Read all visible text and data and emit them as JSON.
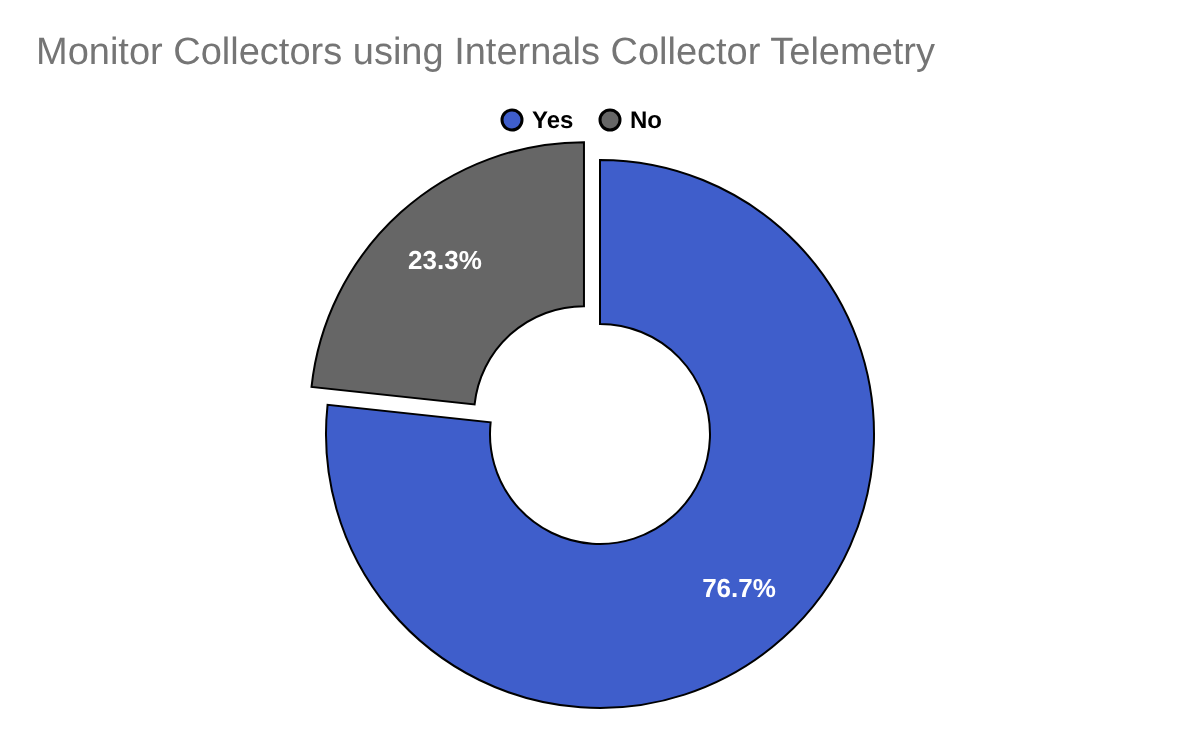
{
  "chart_data": {
    "type": "donut",
    "title": "Monitor Collectors using Internals Collector Telemetry",
    "categories": [
      "Yes",
      "No"
    ],
    "values": [
      76.7,
      23.3
    ],
    "colors": [
      "#3f5ecb",
      "#666666"
    ],
    "value_labels": [
      "76.7%",
      "23.3%"
    ],
    "legend": "top"
  }
}
